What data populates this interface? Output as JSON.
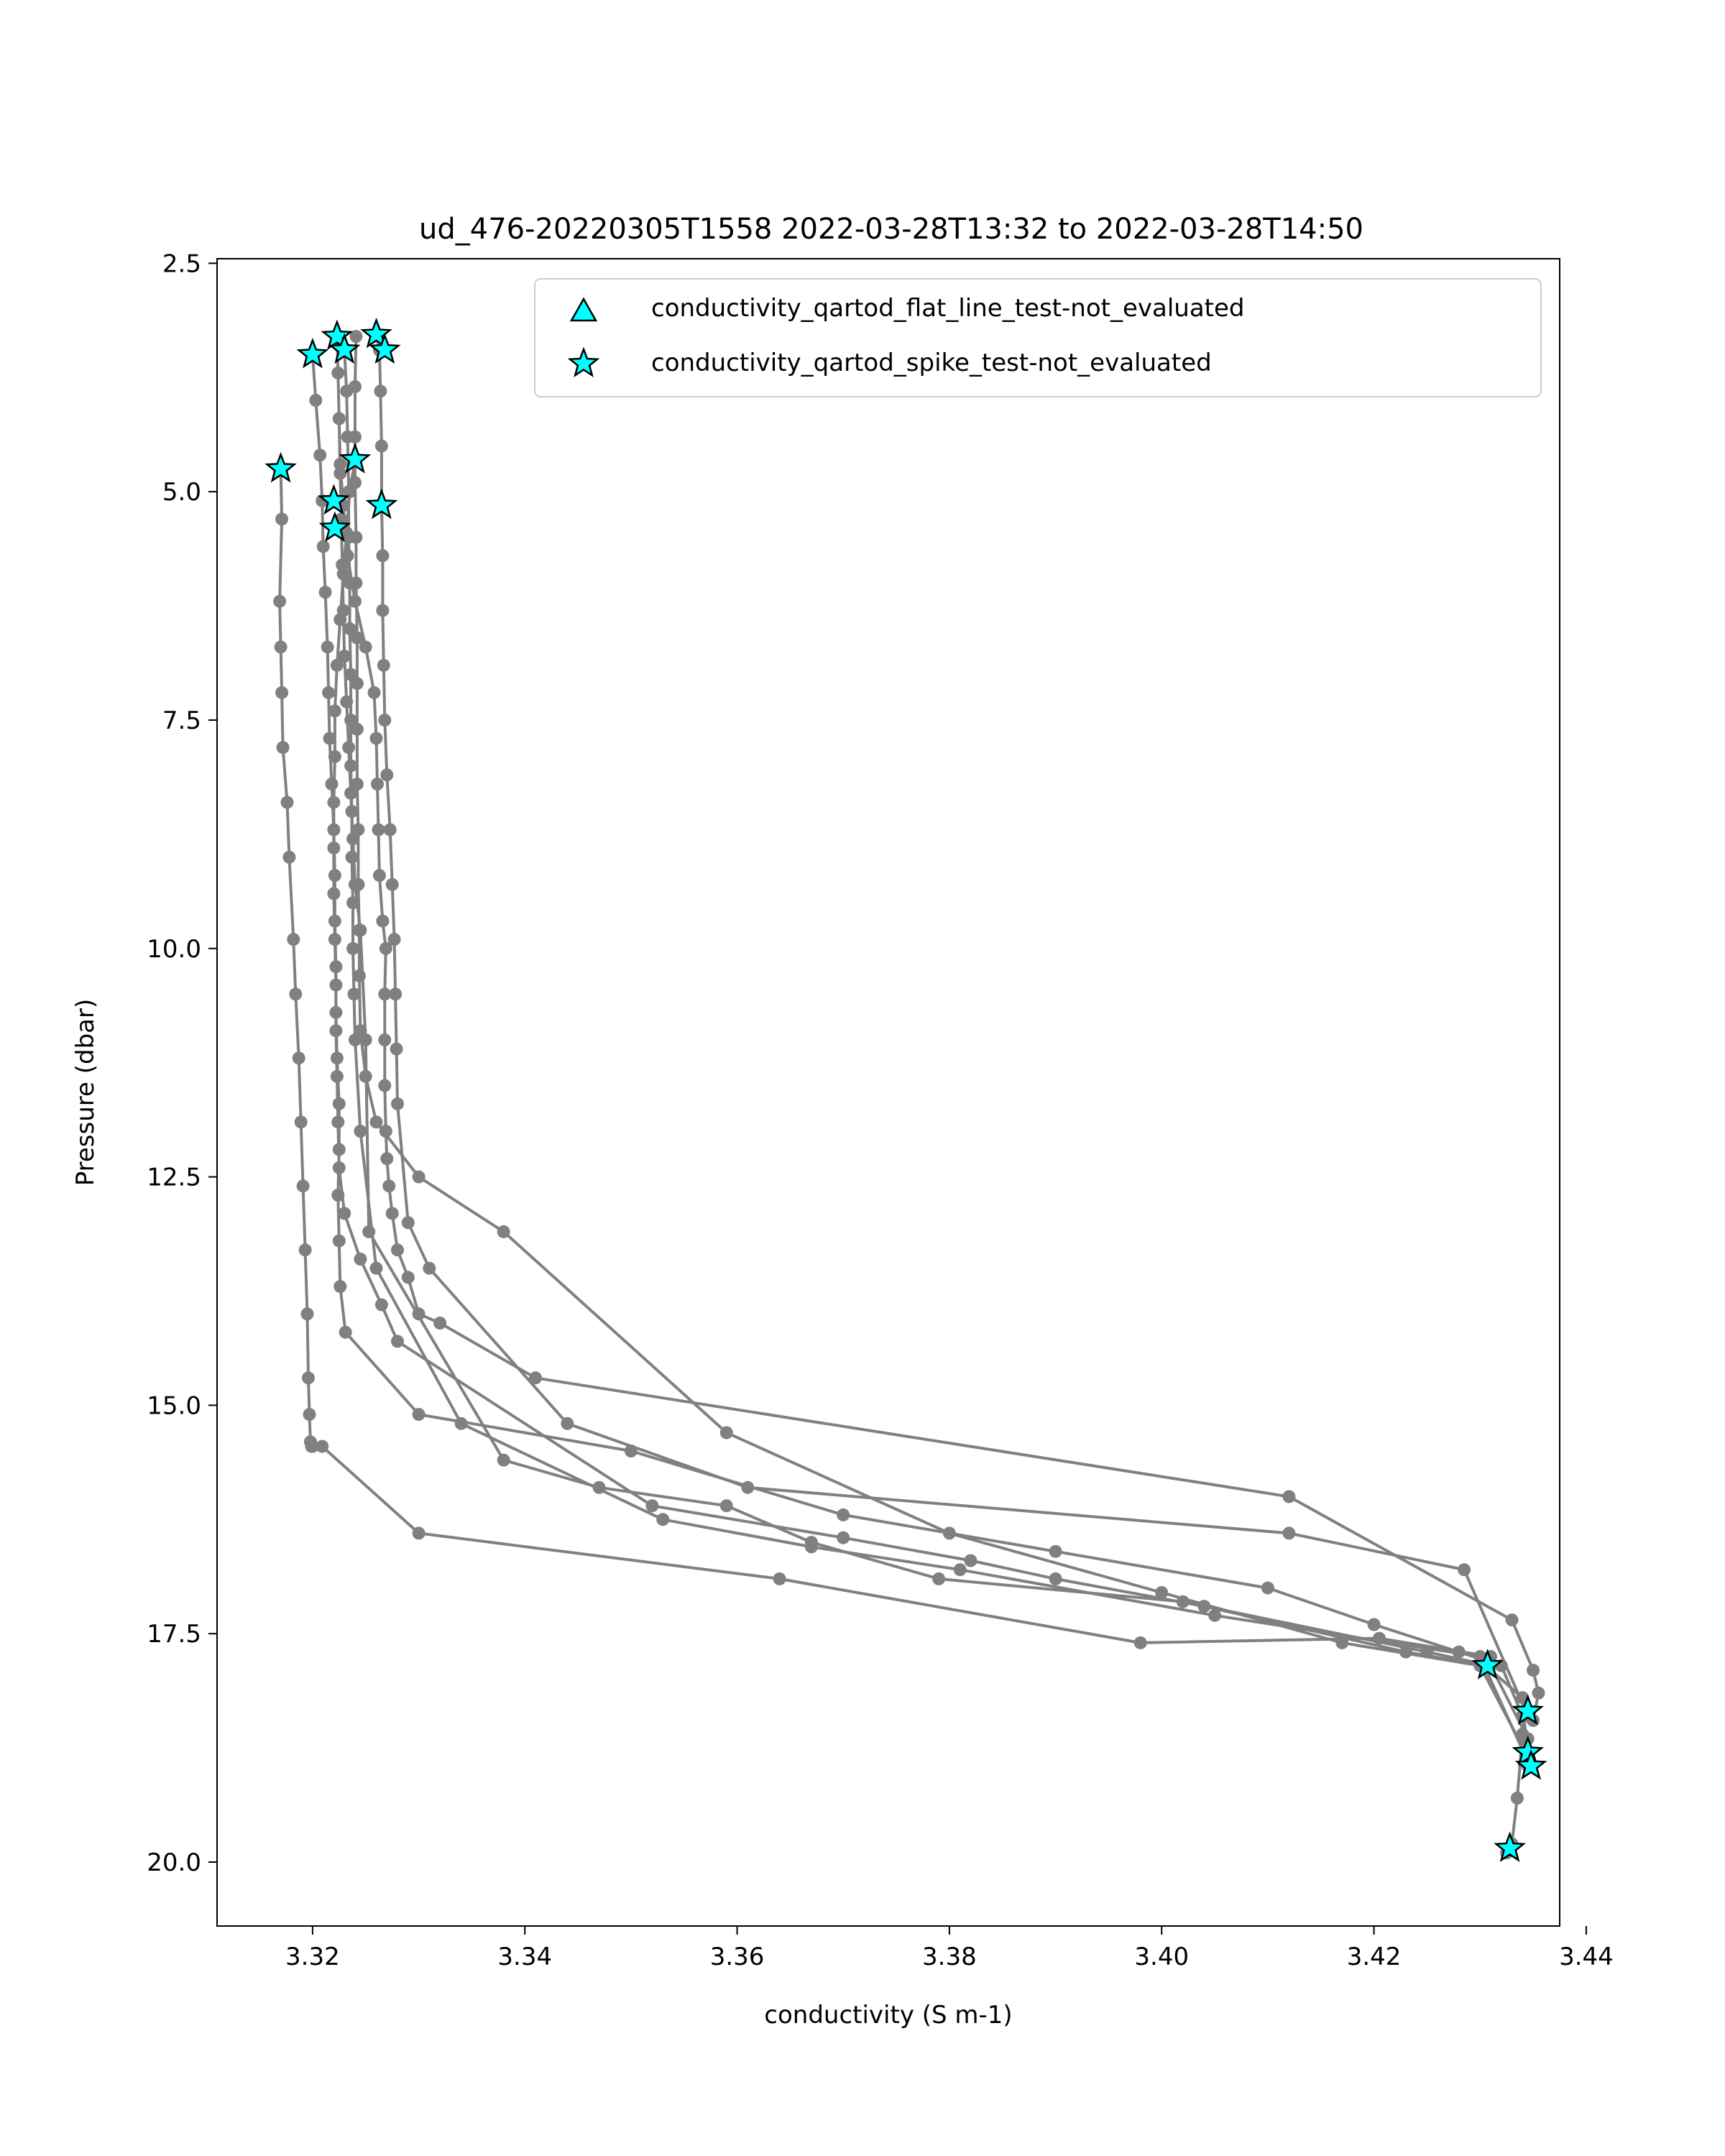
{
  "chart_data": {
    "type": "line",
    "title": "ud_476-20220305T1558 2022-03-28T13:32 to 2022-03-28T14:50",
    "xlabel": "conductivity (S m-1)",
    "ylabel": "Pressure (dbar)",
    "xlim": [
      3.311,
      3.4375
    ],
    "ylim": [
      20.7,
      2.45
    ],
    "y_inverted": true,
    "grid": false,
    "legend_position": "top-right",
    "x_ticks": [
      "3.32",
      "3.34",
      "3.36",
      "3.38",
      "3.40",
      "3.42",
      "3.44"
    ],
    "y_ticks": [
      "2.5",
      "5.0",
      "7.5",
      "10.0",
      "12.5",
      "15.0",
      "17.5",
      "20.0"
    ],
    "line_color": "#808080",
    "marker_color": "#00ffff",
    "legend": [
      {
        "label": "conductivity_qartod_flat_line_test-not_evaluated",
        "marker": "triangle"
      },
      {
        "label": "conductivity_qartod_spike_test-not_evaluated",
        "marker": "star"
      }
    ],
    "series": [
      {
        "x": [
          3.32,
          3.3203,
          3.3207,
          3.3209,
          3.321,
          3.3212,
          3.3214,
          3.3215,
          3.3216,
          3.3218,
          3.322,
          3.3221,
          3.3221,
          3.3222,
          3.3222,
          3.3223,
          3.3225,
          3.3225,
          3.3224,
          3.3225,
          3.3226,
          3.3231,
          3.33,
          3.35,
          3.37,
          3.39,
          3.41,
          3.42,
          3.428,
          3.432,
          3.434,
          3.4345,
          3.4345
        ],
        "y": [
          3.5,
          4.0,
          4.6,
          5.1,
          5.6,
          6.1,
          6.7,
          7.2,
          7.7,
          8.2,
          8.7,
          9.2,
          9.7,
          10.2,
          10.7,
          11.2,
          11.7,
          12.2,
          12.7,
          13.2,
          13.7,
          14.2,
          15.1,
          15.5,
          16.2,
          16.6,
          17.0,
          17.4,
          17.7,
          17.85,
          18.4,
          18.8,
          18.95
        ]
      },
      {
        "x": [
          3.317,
          3.3171,
          3.3169,
          3.317,
          3.3171,
          3.3172,
          3.3176,
          3.3178,
          3.3182,
          3.3184,
          3.3187,
          3.3189,
          3.3191,
          3.3193,
          3.3195,
          3.3196,
          3.3197,
          3.3198,
          3.3199,
          3.32,
          3.3209,
          3.33,
          3.364,
          3.398,
          3.4205,
          3.431
        ],
        "y": [
          4.75,
          5.3,
          6.2,
          6.7,
          7.2,
          7.8,
          8.4,
          9.0,
          9.9,
          10.5,
          11.2,
          11.9,
          12.6,
          13.3,
          14.0,
          14.7,
          15.1,
          15.4,
          15.45,
          15.45,
          15.45,
          16.4,
          16.9,
          17.6,
          17.55,
          17.75
        ]
      },
      {
        "x": [
          3.3223,
          3.3224,
          3.3225,
          3.3226,
          3.3229,
          3.3233,
          3.324,
          3.325,
          3.3258,
          3.326,
          3.3261,
          3.3262,
          3.3263,
          3.3266,
          3.3269,
          3.3268,
          3.3268,
          3.3268,
          3.3269,
          3.327,
          3.3272,
          3.3275,
          3.328,
          3.329,
          3.33,
          3.332,
          3.341,
          3.412,
          3.433,
          3.435,
          3.4355,
          3.435
        ],
        "y": [
          3.3,
          3.7,
          4.2,
          4.7,
          5.15,
          5.7,
          6.2,
          6.7,
          7.2,
          7.7,
          8.2,
          8.7,
          9.2,
          9.7,
          10.0,
          10.5,
          11.0,
          11.5,
          12.0,
          12.3,
          12.6,
          12.9,
          13.3,
          13.6,
          14.0,
          14.1,
          14.7,
          16.0,
          17.35,
          17.9,
          18.15,
          18.45
        ]
      },
      {
        "x": [
          3.326,
          3.3263,
          3.3264,
          3.3265,
          3.3265,
          3.3266,
          3.3266,
          3.3267,
          3.3268,
          3.327,
          3.3273,
          3.3275,
          3.3277,
          3.3278,
          3.3279,
          3.328,
          3.329,
          3.331,
          3.344,
          3.361,
          3.412,
          3.4285,
          3.4345
        ],
        "y": [
          3.28,
          3.45,
          3.9,
          4.5,
          5.15,
          5.7,
          6.3,
          6.9,
          7.5,
          8.1,
          8.7,
          9.3,
          9.9,
          10.5,
          11.1,
          11.7,
          13.0,
          13.5,
          15.2,
          15.9,
          16.4,
          16.8,
          18.4
        ]
      },
      {
        "x": [
          3.324,
          3.3235,
          3.3232,
          3.3229,
          3.3226,
          3.3223,
          3.3221,
          3.3221,
          3.322,
          3.322,
          3.322,
          3.3221,
          3.3222,
          3.3222,
          3.3223,
          3.3224,
          3.3225,
          3.323,
          3.3245,
          3.3265,
          3.328,
          3.352,
          3.37,
          3.382,
          3.39,
          3.404,
          3.423,
          3.4305,
          3.434,
          3.4345
        ],
        "y": [
          4.65,
          5.0,
          5.45,
          5.9,
          6.4,
          6.9,
          7.4,
          7.9,
          8.4,
          8.9,
          9.4,
          9.9,
          10.4,
          10.9,
          11.4,
          11.9,
          12.4,
          12.9,
          13.4,
          13.9,
          14.3,
          16.1,
          16.45,
          16.7,
          16.9,
          17.2,
          17.7,
          17.85,
          18.2,
          18.9
        ]
      },
      {
        "x": [
          3.3241,
          3.324,
          3.324,
          3.324,
          3.3241,
          3.3241,
          3.3242,
          3.3242,
          3.3242,
          3.3242,
          3.3243,
          3.3243,
          3.3244,
          3.3244,
          3.3245,
          3.325,
          3.326,
          3.33,
          3.338,
          3.359,
          3.38,
          3.4,
          3.417,
          3.43,
          3.4345
        ],
        "y": [
          3.3,
          3.85,
          4.4,
          4.9,
          5.5,
          6.0,
          6.6,
          7.1,
          7.6,
          8.2,
          8.7,
          9.3,
          9.8,
          10.3,
          10.9,
          11.4,
          11.9,
          12.5,
          13.1,
          15.3,
          16.4,
          17.05,
          17.6,
          17.85,
          18.85
        ]
      },
      {
        "x": [
          3.323,
          3.3232,
          3.3233,
          3.3234,
          3.3234,
          3.3235,
          3.3235,
          3.3236,
          3.3236,
          3.3236,
          3.3237,
          3.3237,
          3.3238,
          3.3238,
          3.3239,
          3.324,
          3.3245,
          3.326,
          3.334,
          3.353,
          3.367,
          3.381,
          3.405,
          3.43,
          3.4345
        ],
        "y": [
          3.45,
          3.9,
          4.4,
          5.0,
          5.5,
          6.0,
          6.5,
          7.0,
          7.5,
          8.0,
          8.5,
          9.0,
          9.5,
          10.0,
          10.5,
          11.0,
          12.0,
          13.5,
          15.2,
          16.25,
          16.55,
          16.8,
          17.3,
          17.75,
          18.9
        ]
      },
      {
        "x": [
          3.3225,
          3.3226,
          3.3227,
          3.3228,
          3.3229,
          3.323,
          3.3232,
          3.3234,
          3.3236,
          3.3238,
          3.324,
          3.3245,
          3.325,
          3.3253,
          3.338,
          3.347,
          3.359,
          3.367,
          3.379,
          3.402,
          3.425,
          3.431,
          3.4345
        ],
        "y": [
          4.2,
          4.8,
          5.3,
          5.8,
          6.3,
          6.8,
          7.3,
          7.8,
          8.3,
          8.8,
          9.3,
          9.8,
          11.0,
          13.1,
          15.6,
          15.9,
          16.1,
          16.5,
          16.9,
          17.15,
          17.7,
          17.85,
          18.65
        ]
      },
      {
        "x": [
          3.4345,
          3.434,
          3.4335,
          3.433,
          3.4325
        ],
        "y": [
          18.9,
          18.6,
          19.3,
          19.8,
          19.9
        ]
      }
    ],
    "spike_markers": [
      {
        "x": 3.32,
        "y": 3.5
      },
      {
        "x": 3.3223,
        "y": 3.3
      },
      {
        "x": 3.323,
        "y": 3.45
      },
      {
        "x": 3.326,
        "y": 3.28
      },
      {
        "x": 3.3268,
        "y": 3.45
      },
      {
        "x": 3.317,
        "y": 4.75
      },
      {
        "x": 3.324,
        "y": 4.65
      },
      {
        "x": 3.322,
        "y": 5.1
      },
      {
        "x": 3.3265,
        "y": 5.15
      },
      {
        "x": 3.3221,
        "y": 5.4
      },
      {
        "x": 3.4307,
        "y": 17.85
      },
      {
        "x": 3.4345,
        "y": 18.35
      },
      {
        "x": 3.4345,
        "y": 18.8
      },
      {
        "x": 3.4348,
        "y": 18.95
      },
      {
        "x": 3.4328,
        "y": 19.85
      }
    ]
  }
}
